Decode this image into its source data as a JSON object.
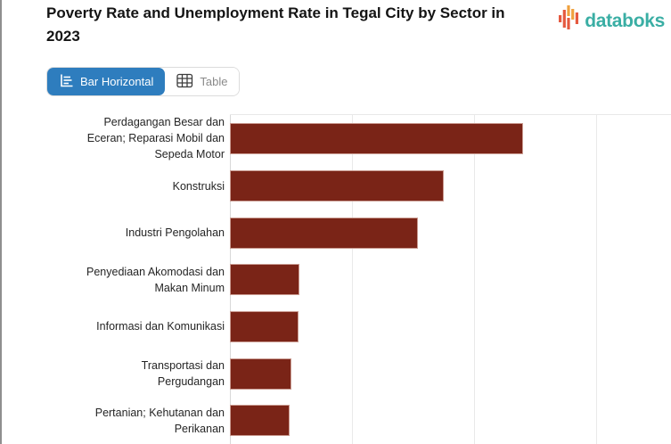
{
  "header": {
    "title": "Poverty Rate and Unemployment Rate in Tegal City by Sector in 2023",
    "brand": "databoks"
  },
  "toolbar": {
    "bar_horizontal_label": "Bar Horizontal",
    "table_label": "Table"
  },
  "colors": {
    "bar": "#7a2417",
    "active_button_blue": "#2e7dbe",
    "brand_teal": "#3aaea4",
    "logo_red": "#e5593f",
    "logo_orange": "#f0a13e",
    "gridline": "#e9e9e9"
  },
  "chart_data": {
    "type": "bar",
    "orientation": "horizontal",
    "title": "Poverty Rate and Unemployment Rate in Tegal City by Sector in 2023",
    "categories": [
      "Perdagangan Besar dan Eceran; Reparasi Mobil dan Sepeda Motor",
      "Konstruksi",
      "Industri Pengolahan",
      "Penyediaan Akomodasi dan Makan Minum",
      "Informasi dan Komunikasi",
      "Transportasi dan Pergudangan",
      "Pertanian; Kehutanan dan Perikanan"
    ],
    "values": [
      24.0,
      17.5,
      15.4,
      5.7,
      5.6,
      5.0,
      4.9
    ],
    "xlabel": "",
    "ylabel": "",
    "xlim": [
      0,
      36.1
    ],
    "gridline_values": [
      0,
      10,
      20,
      30
    ],
    "grid": true,
    "legend": false,
    "axis_tick_labels_visible": false
  }
}
